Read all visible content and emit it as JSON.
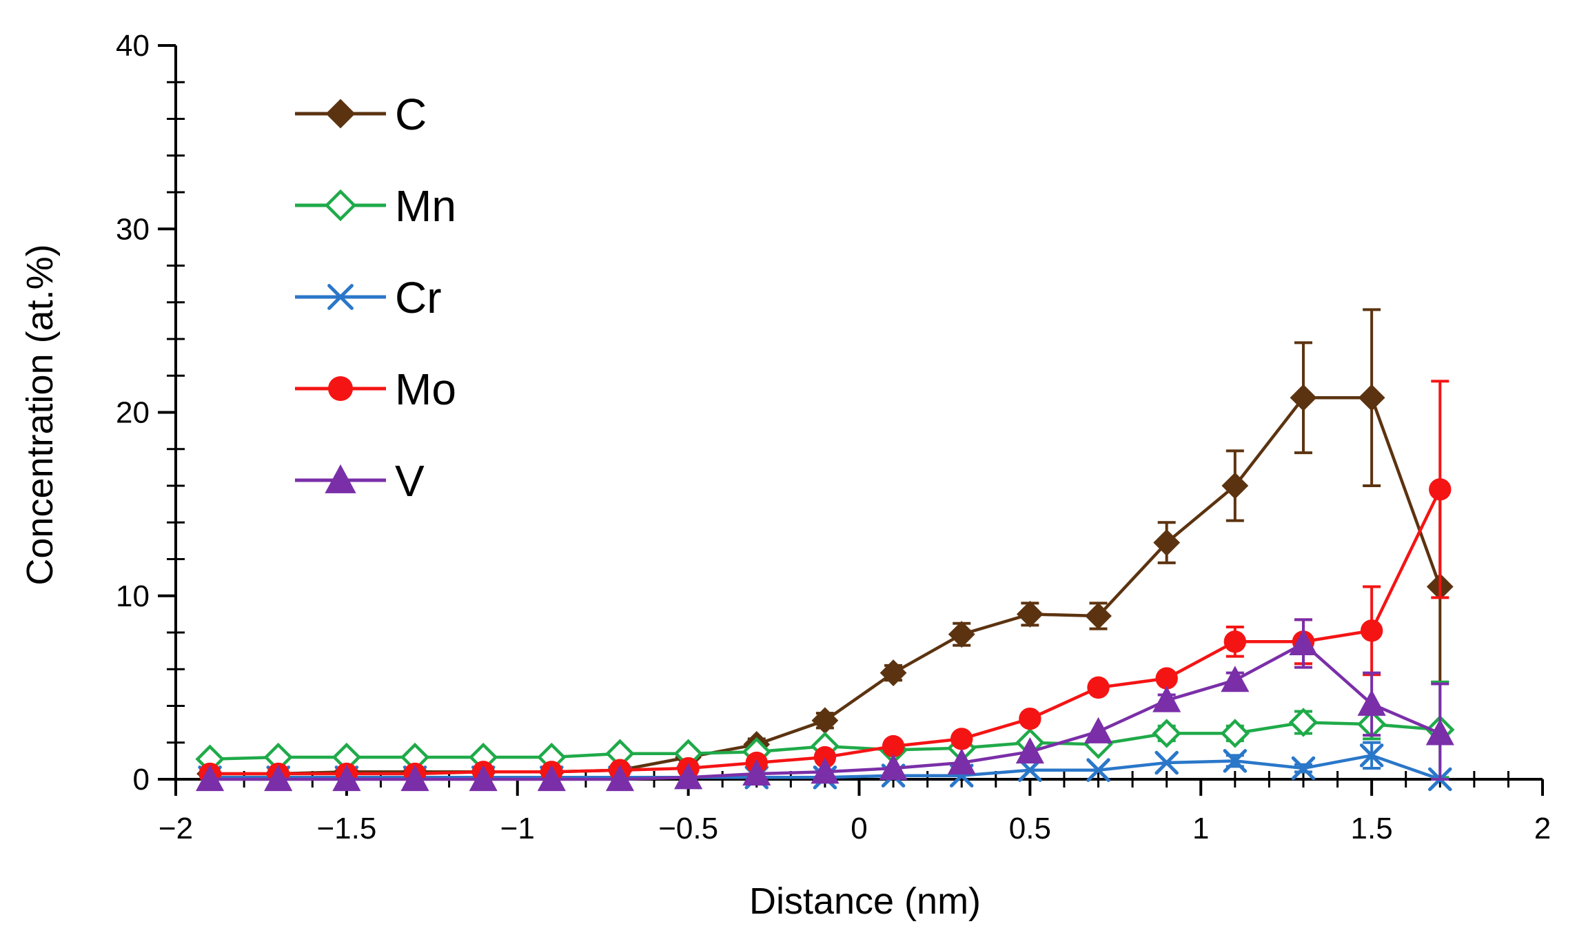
{
  "chart_data": {
    "type": "line",
    "title": "",
    "xlabel": "Distance (nm)",
    "ylabel": "Concentration (at.%)",
    "xlim": [
      -2,
      2
    ],
    "ylim": [
      0,
      40
    ],
    "x_ticks": [
      -2,
      -1.5,
      -1,
      -0.5,
      0,
      0.5,
      1,
      1.5,
      2
    ],
    "x_tick_labels": [
      "−2",
      "−1.5",
      "−1",
      "−0.5",
      "0",
      "0.5",
      "1",
      "1.5",
      "2"
    ],
    "y_ticks": [
      0,
      10,
      20,
      30,
      40
    ],
    "y_tick_labels": [
      "0",
      "10",
      "20",
      "30",
      "40"
    ],
    "grid": false,
    "legend_position": "top-left",
    "x": [
      -1.9,
      -1.7,
      -1.5,
      -1.3,
      -1.1,
      -0.9,
      -0.7,
      -0.5,
      -0.3,
      -0.1,
      0.1,
      0.3,
      0.5,
      0.7,
      0.9,
      1.1,
      1.3,
      1.5,
      1.7
    ],
    "series": [
      {
        "name": "C",
        "color": "#5c3310",
        "marker": "diamond-filled",
        "values": [
          0.3,
          0.3,
          0.4,
          0.4,
          0.4,
          0.4,
          0.5,
          1.2,
          1.9,
          3.2,
          5.8,
          7.9,
          9.0,
          8.9,
          12.9,
          16.0,
          20.8,
          20.8,
          10.5
        ],
        "errors": [
          0,
          0,
          0,
          0,
          0,
          0,
          0,
          0.3,
          0.3,
          0.4,
          0.4,
          0.6,
          0.6,
          0.7,
          1.1,
          1.9,
          3.0,
          4.8,
          5.2
        ]
      },
      {
        "name": "Mn",
        "color": "#1faa49",
        "marker": "diamond-open",
        "values": [
          1.1,
          1.2,
          1.2,
          1.2,
          1.2,
          1.2,
          1.4,
          1.4,
          1.5,
          1.8,
          1.6,
          1.7,
          2.0,
          1.9,
          2.5,
          2.5,
          3.1,
          3.0,
          2.7
        ],
        "errors": [
          0,
          0,
          0,
          0,
          0,
          0,
          0,
          0,
          0,
          0,
          0,
          0,
          0,
          0,
          0.4,
          0.4,
          0.6,
          0.8,
          2.6
        ]
      },
      {
        "name": "Cr",
        "color": "#2a77c9",
        "marker": "x",
        "values": [
          0.1,
          0.1,
          0.1,
          0.1,
          0.1,
          0.1,
          0.1,
          0.1,
          0.1,
          0.1,
          0.2,
          0.2,
          0.5,
          0.5,
          0.9,
          1.0,
          0.6,
          1.3,
          0.0
        ],
        "errors": [
          0,
          0,
          0,
          0,
          0,
          0,
          0,
          0,
          0,
          0,
          0,
          0,
          0,
          0,
          0,
          0.3,
          0.2,
          0.7,
          0
        ]
      },
      {
        "name": "Mo",
        "color": "#f51414",
        "marker": "circle-filled",
        "values": [
          0.3,
          0.3,
          0.3,
          0.3,
          0.4,
          0.4,
          0.5,
          0.6,
          0.9,
          1.2,
          1.8,
          2.2,
          3.3,
          5.0,
          5.5,
          7.5,
          7.5,
          8.1,
          15.8
        ],
        "errors": [
          0,
          0,
          0,
          0,
          0,
          0,
          0,
          0,
          0,
          0,
          0,
          0,
          0,
          0,
          0,
          0.8,
          1.2,
          2.4,
          5.9
        ]
      },
      {
        "name": "V",
        "color": "#7a2fa8",
        "marker": "triangle-filled",
        "values": [
          0.0,
          0.0,
          0.0,
          0.0,
          0.0,
          0.0,
          0.0,
          0.1,
          0.3,
          0.4,
          0.6,
          0.9,
          1.5,
          2.6,
          4.3,
          5.4,
          7.4,
          4.1,
          2.5
        ],
        "errors": [
          0,
          0,
          0,
          0,
          0,
          0,
          0,
          0,
          0,
          0,
          0,
          0,
          0,
          0,
          0.3,
          0.4,
          1.3,
          1.7,
          2.7
        ]
      }
    ]
  }
}
